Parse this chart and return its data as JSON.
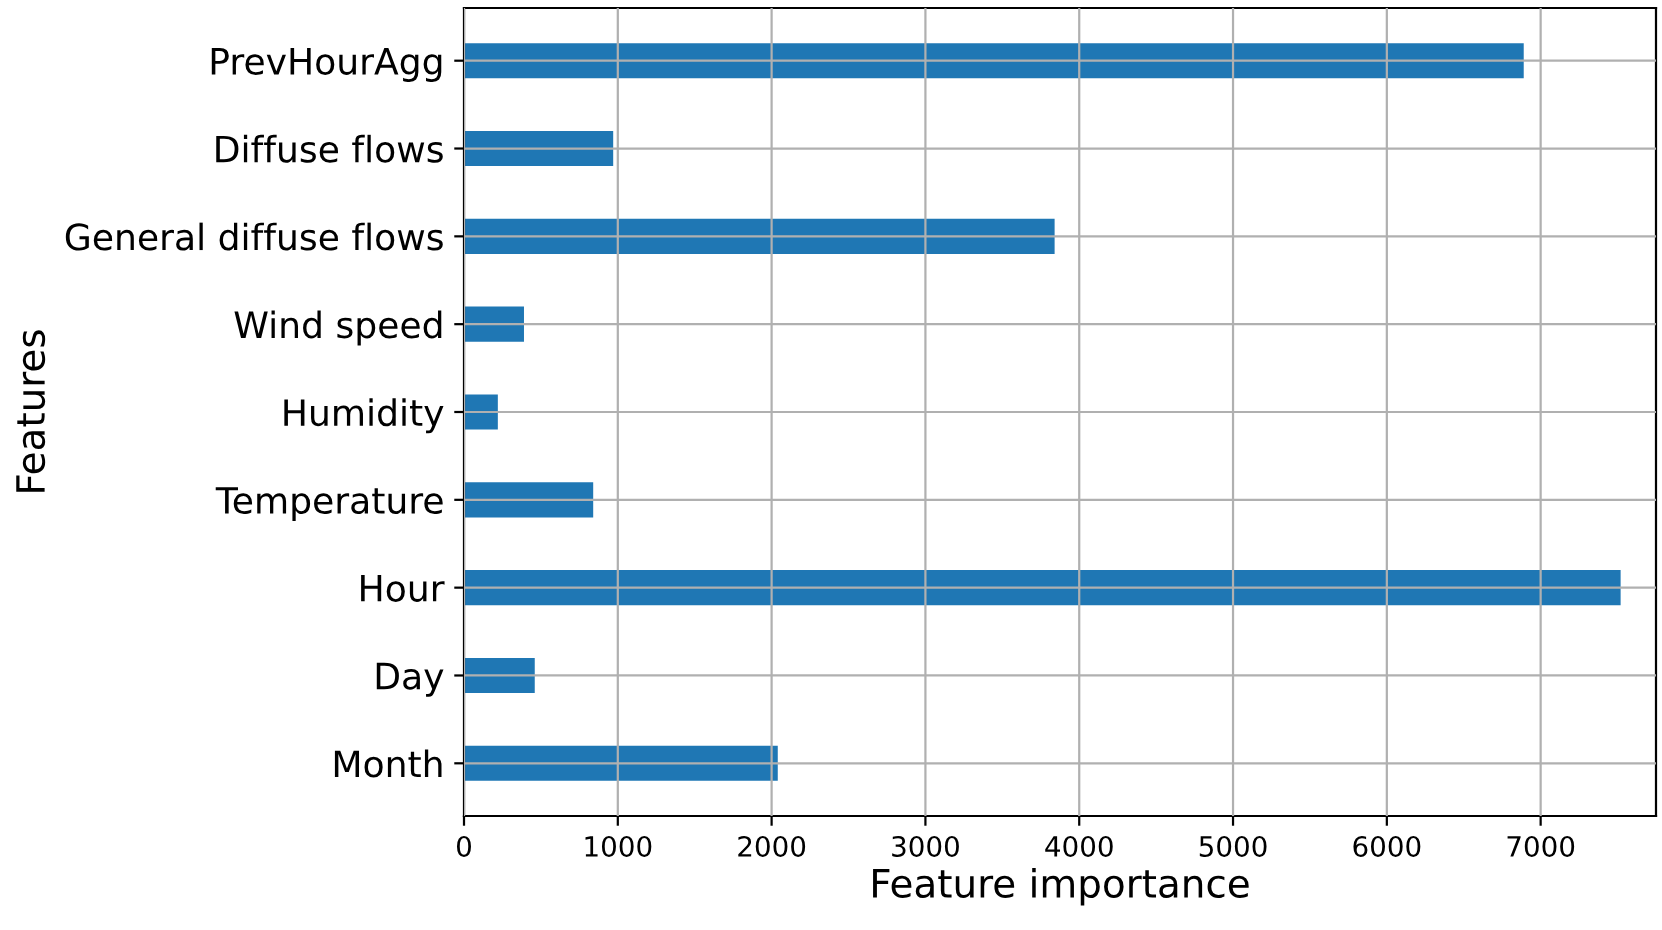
{
  "chart_data": {
    "type": "bar",
    "orientation": "horizontal",
    "xlabel": "Feature importance",
    "ylabel": "Features",
    "categories": [
      "PrevHourAgg",
      "Diffuse flows",
      "General diffuse flows",
      "Wind speed",
      "Humidity",
      "Temperature",
      "Hour",
      "Day",
      "Month"
    ],
    "values": [
      6890,
      970,
      3840,
      390,
      220,
      840,
      7520,
      460,
      2040
    ],
    "color": "#1f77b4",
    "xlim": [
      0,
      7750
    ],
    "xticks": [
      0,
      1000,
      2000,
      3000,
      4000,
      5000,
      6000,
      7000
    ],
    "grid": true
  }
}
